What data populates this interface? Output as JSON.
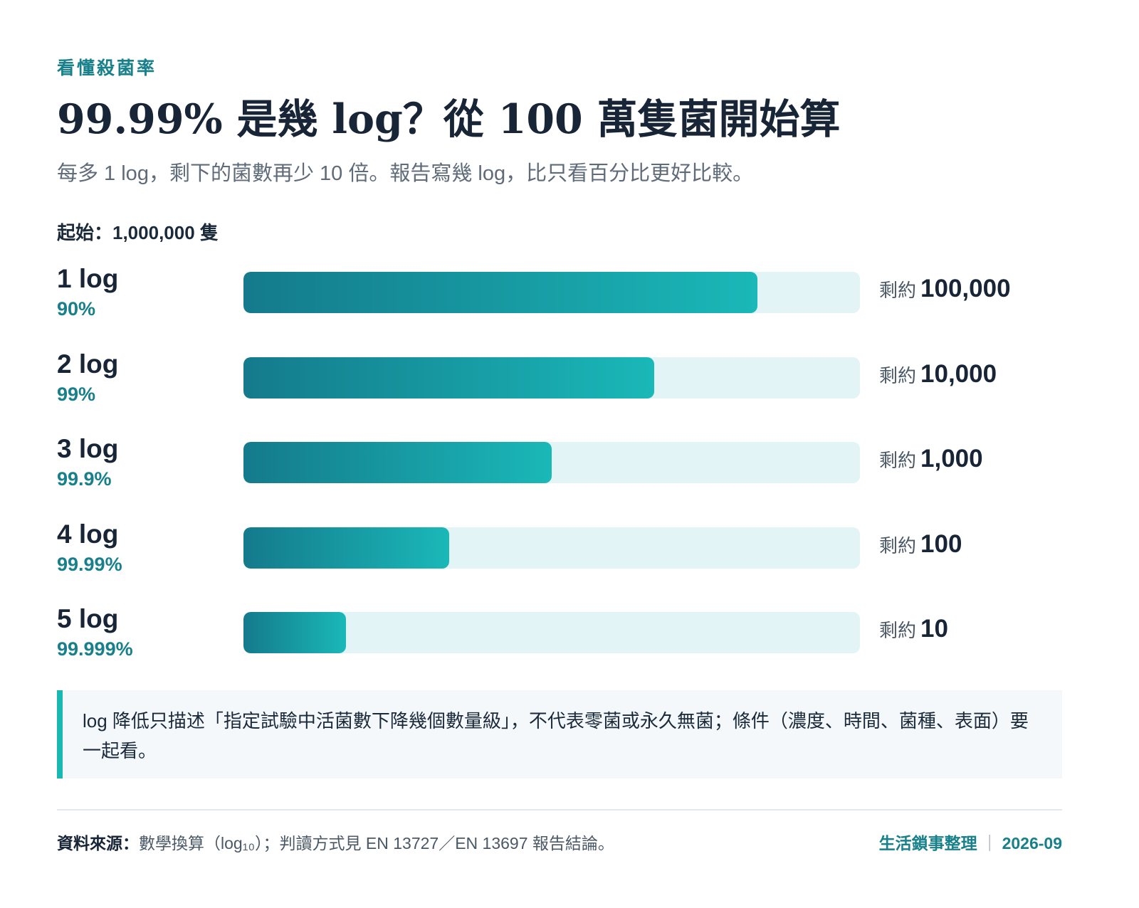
{
  "header": {
    "eyebrow": "看懂殺菌率",
    "title": "99.99% 是幾 log？從 100 萬隻菌開始算",
    "subtitle": "每多 1 log，剩下的菌數再少 10 倍。報告寫幾 log，比只看百分比更好比較。"
  },
  "chart_data": {
    "type": "bar",
    "start_label": "起始：1,000,000 隻",
    "remaining_prefix": "剩約",
    "rows": [
      {
        "log": "1 log",
        "percent": "90%",
        "remaining": "100,000",
        "value": 100000
      },
      {
        "log": "2 log",
        "percent": "99%",
        "remaining": "10,000",
        "value": 10000
      },
      {
        "log": "3 log",
        "percent": "99.9%",
        "remaining": "1,000",
        "value": 1000
      },
      {
        "log": "4 log",
        "percent": "99.99%",
        "remaining": "100",
        "value": 100
      },
      {
        "log": "5 log",
        "percent": "99.999%",
        "remaining": "10",
        "value": 10
      }
    ],
    "bar_colors": {
      "track": "#e2f4f6",
      "fill_start": "#147a8c",
      "fill_end": "#1ab8b8"
    }
  },
  "note": "log 降低只描述「指定試驗中活菌數下降幾個數量級」，不代表零菌或永久無菌；條件（濃度、時間、菌種、表面）要一起看。",
  "footer": {
    "source_label": "資料來源：",
    "source_text": "數學換算（log₁₀）；判讀方式見 EN 13727／EN 13697 報告結論。",
    "org": "生活鎖事整理",
    "separator": "｜",
    "date": "2026-09"
  },
  "colors": {
    "accent": "#17808b",
    "title": "#182536",
    "note_bar": "#1ab8b2"
  }
}
